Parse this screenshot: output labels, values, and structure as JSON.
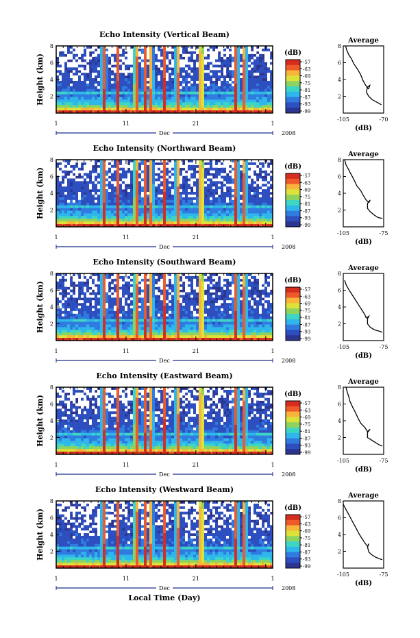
{
  "figure": {
    "xlabel_bottom": "Local Time (Day)"
  },
  "chart_data": [
    {
      "type": "heatmap",
      "title": "Echo Intensity (Vertical Beam)",
      "ylabel": "Height (km)",
      "x_ticks": [
        "1",
        "11",
        "21",
        "1"
      ],
      "month_label": "Dec",
      "year_label": "2008",
      "ylim": [
        0,
        8
      ],
      "y_ticks": [
        "2",
        "4",
        "6",
        "8"
      ],
      "colorbar": {
        "unit": "(dB)",
        "ticks": [
          "-57",
          "-63",
          "-69",
          "-75",
          "-81",
          "-87",
          "-93",
          "-99"
        ]
      },
      "profile": {
        "title": "Average",
        "xlabel": "(dB)",
        "x_ticks": [
          "-105",
          "-70"
        ],
        "xlim": [
          -105,
          -70
        ],
        "points": [
          [
            -103,
            8
          ],
          [
            -102,
            7.5
          ],
          [
            -100,
            6.9
          ],
          [
            -98,
            6.5
          ],
          [
            -96,
            5.9
          ],
          [
            -93,
            5.3
          ],
          [
            -90,
            4.6
          ],
          [
            -88,
            3.9
          ],
          [
            -86,
            3.4
          ],
          [
            -84,
            3.0
          ],
          [
            -83,
            2.9
          ],
          [
            -82,
            3.3
          ],
          [
            -84,
            3.1
          ],
          [
            -85,
            2.5
          ],
          [
            -83,
            2.0
          ],
          [
            -80,
            1.6
          ],
          [
            -76,
            1.3
          ],
          [
            -72,
            1.0
          ]
        ]
      }
    },
    {
      "type": "heatmap",
      "title": "Echo Intensity (Northward Beam)",
      "ylabel": "Height (km)",
      "x_ticks": [
        "1",
        "11",
        "21",
        "1"
      ],
      "month_label": "Dec",
      "year_label": "2008",
      "ylim": [
        0,
        8
      ],
      "y_ticks": [
        "2",
        "4",
        "6",
        "8"
      ],
      "colorbar": {
        "unit": "(dB)",
        "ticks": [
          "-57",
          "-63",
          "-69",
          "-75",
          "-81",
          "-87",
          "-93",
          "-99"
        ]
      },
      "profile": {
        "title": "Average",
        "xlabel": "(dB)",
        "x_ticks": [
          "-105",
          "-75"
        ],
        "xlim": [
          -105,
          -75
        ],
        "points": [
          [
            -104,
            8
          ],
          [
            -103,
            7.4
          ],
          [
            -101,
            6.8
          ],
          [
            -99,
            6.2
          ],
          [
            -97,
            5.6
          ],
          [
            -95,
            4.9
          ],
          [
            -92,
            4.3
          ],
          [
            -90,
            3.7
          ],
          [
            -88,
            3.2
          ],
          [
            -86,
            2.9
          ],
          [
            -85,
            3.2
          ],
          [
            -87,
            2.8
          ],
          [
            -87,
            2.2
          ],
          [
            -85,
            1.8
          ],
          [
            -82,
            1.4
          ],
          [
            -79,
            1.1
          ],
          [
            -76,
            1.0
          ]
        ]
      }
    },
    {
      "type": "heatmap",
      "title": "Echo Intensity (Southward Beam)",
      "ylabel": "Height (km)",
      "x_ticks": [
        "1",
        "11",
        "21",
        "1"
      ],
      "month_label": "Dec",
      "year_label": "2008",
      "ylim": [
        0,
        8
      ],
      "y_ticks": [
        "2",
        "4",
        "6",
        "8"
      ],
      "colorbar": {
        "unit": "(dB)",
        "ticks": [
          "-57",
          "-63",
          "-69",
          "-75",
          "-81",
          "-87",
          "-93",
          "-99"
        ]
      },
      "profile": {
        "title": "Average",
        "xlabel": "(dB)",
        "x_ticks": [
          "-105",
          "-75"
        ],
        "xlim": [
          -105,
          -75
        ],
        "points": [
          [
            -104,
            7.2
          ],
          [
            -103,
            6.7
          ],
          [
            -101,
            6.1
          ],
          [
            -99,
            5.6
          ],
          [
            -97,
            5.1
          ],
          [
            -95,
            4.6
          ],
          [
            -93,
            4.1
          ],
          [
            -91,
            3.6
          ],
          [
            -89,
            3.1
          ],
          [
            -88,
            2.7
          ],
          [
            -86,
            2.9
          ],
          [
            -87,
            2.6
          ],
          [
            -87,
            2.0
          ],
          [
            -85,
            1.6
          ],
          [
            -82,
            1.3
          ],
          [
            -78,
            1.1
          ],
          [
            -76,
            1.0
          ]
        ]
      }
    },
    {
      "type": "heatmap",
      "title": "Echo Intensity (Eastward Beam)",
      "ylabel": "Height (km)",
      "x_ticks": [
        "1",
        "11",
        "21",
        "1"
      ],
      "month_label": "Dec",
      "year_label": "2008",
      "ylim": [
        0,
        8
      ],
      "y_ticks": [
        "2",
        "4",
        "6",
        "8"
      ],
      "colorbar": {
        "unit": "(dB)",
        "ticks": [
          "-57",
          "-63",
          "-69",
          "-75",
          "-81",
          "-87",
          "-93",
          "-99"
        ]
      },
      "profile": {
        "title": "Average",
        "xlabel": "(dB)",
        "x_ticks": [
          "-105",
          "-75"
        ],
        "xlim": [
          -105,
          -75
        ],
        "points": [
          [
            -103,
            8
          ],
          [
            -102,
            7.4
          ],
          [
            -101,
            6.9
          ],
          [
            -100,
            6.3
          ],
          [
            -98,
            5.6
          ],
          [
            -96,
            5.0
          ],
          [
            -94,
            4.3
          ],
          [
            -92,
            3.7
          ],
          [
            -89,
            3.2
          ],
          [
            -87,
            2.7
          ],
          [
            -85,
            3.0
          ],
          [
            -87,
            2.6
          ],
          [
            -87,
            2.0
          ],
          [
            -84,
            1.7
          ],
          [
            -81,
            1.4
          ],
          [
            -78,
            1.1
          ],
          [
            -76,
            1.0
          ]
        ]
      }
    },
    {
      "type": "heatmap",
      "title": "Echo Intensity (Westward Beam)",
      "ylabel": "Height (km)",
      "x_ticks": [
        "1",
        "11",
        "21",
        "1"
      ],
      "month_label": "Dec",
      "year_label": "2008",
      "ylim": [
        0,
        8
      ],
      "y_ticks": [
        "2",
        "4",
        "6",
        "8"
      ],
      "colorbar": {
        "unit": "(dB)",
        "ticks": [
          "-57",
          "-63",
          "-69",
          "-75",
          "-81",
          "-87",
          "-93",
          "-99"
        ]
      },
      "profile": {
        "title": "Average",
        "xlabel": "(dB)",
        "x_ticks": [
          "-105",
          "-75"
        ],
        "xlim": [
          -105,
          -75
        ],
        "points": [
          [
            -105,
            7.6
          ],
          [
            -103,
            7.0
          ],
          [
            -101,
            6.4
          ],
          [
            -99,
            5.8
          ],
          [
            -97,
            5.2
          ],
          [
            -95,
            4.6
          ],
          [
            -93,
            4.0
          ],
          [
            -91,
            3.5
          ],
          [
            -89,
            3.0
          ],
          [
            -87,
            2.6
          ],
          [
            -86,
            2.9
          ],
          [
            -87,
            2.5
          ],
          [
            -86,
            1.9
          ],
          [
            -84,
            1.6
          ],
          [
            -81,
            1.3
          ],
          [
            -78,
            1.1
          ],
          [
            -76,
            1.0
          ]
        ]
      }
    }
  ]
}
